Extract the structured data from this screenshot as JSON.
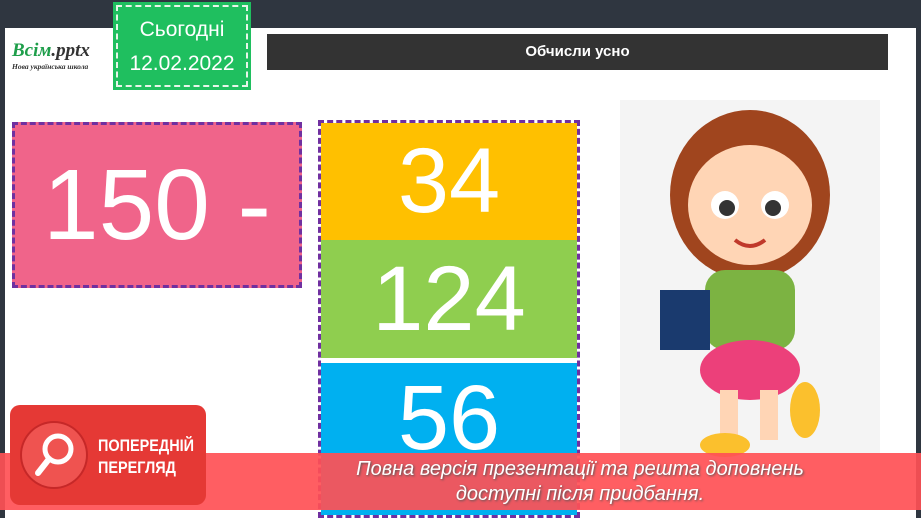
{
  "logo": {
    "brand": "Всім",
    "ext": ".pptx",
    "tagline": "Нова українська школа"
  },
  "date": {
    "label": "Сьогодні",
    "value": "12.02.2022"
  },
  "header": {
    "title": "Обчисли усно"
  },
  "expression": {
    "minuend": "150 -"
  },
  "options": [
    {
      "value": "34",
      "color": "#ffc000"
    },
    {
      "value": "124",
      "color": "#8fce4f"
    },
    {
      "value": "56",
      "color": "#00b0f0"
    }
  ],
  "preview": {
    "line1": "ПОПЕРЕДНІЙ",
    "line2": "ПЕРЕГЛЯД",
    "icon": "magnifier-icon"
  },
  "banner": {
    "line1": "Повна версія презентації та решта доповнень",
    "line2": "доступні після придбання."
  }
}
